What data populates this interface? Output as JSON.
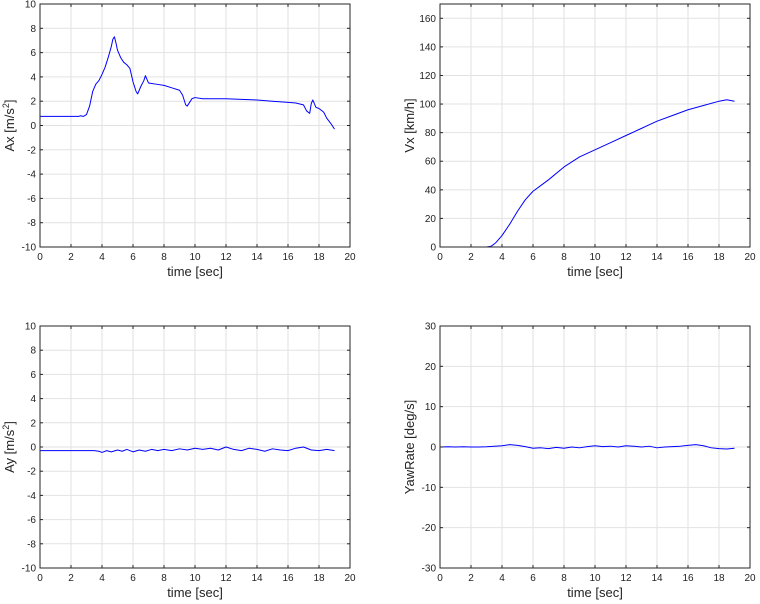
{
  "chart_data": [
    {
      "id": "ax",
      "type": "line",
      "ylabel_main": "Ax [m/s",
      "ylabel_sup": "2",
      "ylabel_end": "]",
      "xlabel": "time [sec]",
      "xlim": [
        0,
        20
      ],
      "ylim": [
        -10,
        10
      ],
      "xticks": [
        0,
        2,
        4,
        6,
        8,
        10,
        12,
        14,
        16,
        18,
        20
      ],
      "yticks": [
        -10,
        -8,
        -6,
        -4,
        -2,
        0,
        2,
        4,
        6,
        8,
        10
      ],
      "grid": true,
      "series": [
        {
          "name": "Ax",
          "color": "#0000ff",
          "x": [
            0,
            0.5,
            1,
            1.5,
            2,
            2.5,
            2.6,
            2.8,
            3.0,
            3.2,
            3.4,
            3.6,
            3.8,
            4.0,
            4.2,
            4.4,
            4.6,
            4.7,
            4.8,
            4.9,
            5.0,
            5.2,
            5.4,
            5.6,
            5.8,
            6.0,
            6.2,
            6.3,
            6.5,
            6.7,
            6.8,
            7.0,
            7.5,
            8.0,
            8.5,
            9.0,
            9.2,
            9.4,
            9.5,
            9.7,
            9.8,
            10.0,
            10.5,
            11,
            12,
            13,
            14,
            15,
            16,
            16.5,
            17,
            17.2,
            17.4,
            17.5,
            17.6,
            17.8,
            18.0,
            18.3,
            18.5,
            18.8,
            19.0
          ],
          "y": [
            0.75,
            0.75,
            0.75,
            0.75,
            0.75,
            0.75,
            0.8,
            0.75,
            0.9,
            1.6,
            2.8,
            3.4,
            3.7,
            4.2,
            4.8,
            5.6,
            6.5,
            7.1,
            7.3,
            6.8,
            6.2,
            5.6,
            5.2,
            5.0,
            4.7,
            3.6,
            2.8,
            2.6,
            3.2,
            3.7,
            4.1,
            3.5,
            3.4,
            3.3,
            3.1,
            2.9,
            2.5,
            1.7,
            1.6,
            2.0,
            2.2,
            2.3,
            2.2,
            2.2,
            2.2,
            2.15,
            2.1,
            2.0,
            1.9,
            1.85,
            1.7,
            1.2,
            1.0,
            1.8,
            2.1,
            1.5,
            1.4,
            1.1,
            0.6,
            0.1,
            -0.3
          ]
        }
      ]
    },
    {
      "id": "vx",
      "type": "line",
      "ylabel_main": "Vx [km/h]",
      "ylabel_sup": "",
      "ylabel_end": "",
      "xlabel": "time [sec]",
      "xlim": [
        0,
        20
      ],
      "ylim": [
        0,
        170
      ],
      "xticks": [
        0,
        2,
        4,
        6,
        8,
        10,
        12,
        14,
        16,
        18,
        20
      ],
      "yticks": [
        0,
        20,
        40,
        60,
        80,
        100,
        120,
        140,
        160
      ],
      "grid": true,
      "series": [
        {
          "name": "Vx",
          "color": "#0000ff",
          "x": [
            0,
            1,
            2,
            3,
            3.3,
            3.6,
            4.0,
            4.5,
            5.0,
            5.5,
            6.0,
            6.5,
            7.0,
            8.0,
            9.0,
            10.0,
            11,
            12,
            13,
            14,
            15,
            16,
            17,
            18,
            18.5,
            19.0
          ],
          "y": [
            0,
            0,
            0,
            0,
            0.5,
            3,
            8,
            16,
            25,
            33,
            39,
            43,
            47,
            56,
            63,
            68,
            73,
            78,
            83,
            88,
            92,
            96,
            99,
            102,
            103,
            102
          ]
        }
      ]
    },
    {
      "id": "ay",
      "type": "line",
      "ylabel_main": "Ay [m/s",
      "ylabel_sup": "2",
      "ylabel_end": "]",
      "xlabel": "time [sec]",
      "xlim": [
        0,
        20
      ],
      "ylim": [
        -10,
        10
      ],
      "xticks": [
        0,
        2,
        4,
        6,
        8,
        10,
        12,
        14,
        16,
        18,
        20
      ],
      "yticks": [
        -10,
        -8,
        -6,
        -4,
        -2,
        0,
        2,
        4,
        6,
        8,
        10
      ],
      "grid": true,
      "series": [
        {
          "name": "Ay",
          "color": "#0000ff",
          "x": [
            0,
            1,
            2,
            3,
            3.5,
            3.8,
            4.0,
            4.3,
            4.6,
            5.0,
            5.3,
            5.6,
            6.0,
            6.4,
            6.8,
            7.2,
            7.6,
            8.0,
            8.5,
            9.0,
            9.5,
            10.0,
            10.5,
            11.0,
            11.5,
            12.0,
            12.5,
            13.0,
            13.5,
            14.0,
            14.5,
            15.0,
            15.5,
            16.0,
            16.5,
            17.0,
            17.5,
            18.0,
            18.5,
            19.0
          ],
          "y": [
            -0.3,
            -0.3,
            -0.3,
            -0.3,
            -0.3,
            -0.35,
            -0.45,
            -0.3,
            -0.4,
            -0.25,
            -0.35,
            -0.2,
            -0.4,
            -0.25,
            -0.35,
            -0.2,
            -0.3,
            -0.2,
            -0.3,
            -0.15,
            -0.25,
            -0.1,
            -0.2,
            -0.1,
            -0.25,
            0.0,
            -0.2,
            -0.3,
            -0.1,
            -0.2,
            -0.35,
            -0.15,
            -0.25,
            -0.3,
            -0.1,
            0.0,
            -0.25,
            -0.3,
            -0.2,
            -0.3
          ]
        }
      ]
    },
    {
      "id": "yaw",
      "type": "line",
      "ylabel_main": "YawRate [deg/s]",
      "ylabel_sup": "",
      "ylabel_end": "",
      "xlabel": "time [sec]",
      "xlim": [
        0,
        20
      ],
      "ylim": [
        -30,
        30
      ],
      "xticks": [
        0,
        2,
        4,
        6,
        8,
        10,
        12,
        14,
        16,
        18,
        20
      ],
      "yticks": [
        -30,
        -20,
        -10,
        0,
        10,
        20,
        30
      ],
      "grid": true,
      "series": [
        {
          "name": "YawRate",
          "color": "#0000ff",
          "x": [
            0,
            0.5,
            1,
            1.5,
            2,
            2.5,
            3,
            3.5,
            4.0,
            4.5,
            5.0,
            5.5,
            6.0,
            6.5,
            7.0,
            7.5,
            8.0,
            8.5,
            9.0,
            9.5,
            10.0,
            10.5,
            11.0,
            11.5,
            12.0,
            12.5,
            13.0,
            13.5,
            14.0,
            14.5,
            15.0,
            15.5,
            16.0,
            16.5,
            17.0,
            17.5,
            18.0,
            18.5,
            19.0
          ],
          "y": [
            0,
            0.05,
            0,
            0.05,
            0,
            0,
            0.05,
            0.2,
            0.3,
            0.6,
            0.4,
            0.1,
            -0.3,
            -0.2,
            -0.4,
            -0.1,
            -0.3,
            0.0,
            -0.2,
            0.1,
            0.3,
            0.1,
            0.2,
            0.0,
            0.3,
            0.2,
            0.0,
            0.2,
            -0.2,
            0.0,
            0.1,
            0.2,
            0.4,
            0.6,
            0.3,
            -0.2,
            -0.4,
            -0.5,
            -0.3
          ]
        }
      ]
    }
  ]
}
